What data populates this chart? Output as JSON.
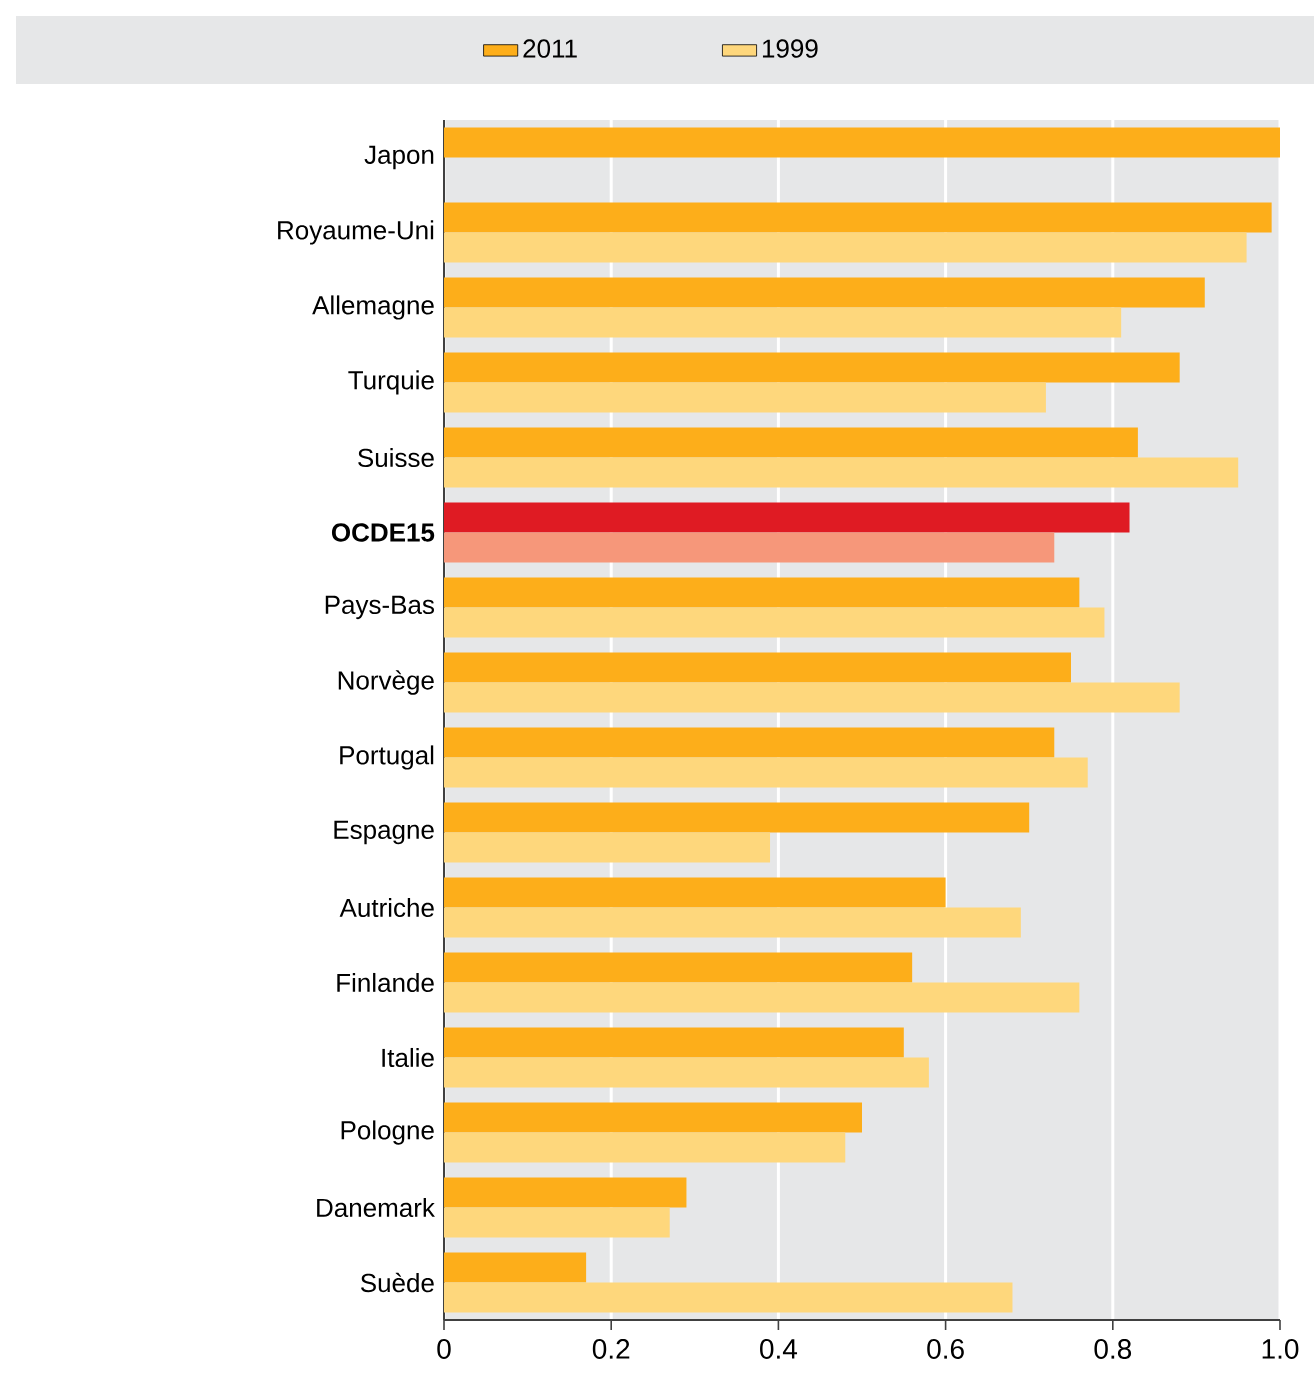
{
  "chart_data": {
    "type": "bar",
    "orientation": "horizontal",
    "categories": [
      "Japon",
      "Royaume-Uni",
      "Allemagne",
      "Turquie",
      "Suisse",
      "**OCDE15**",
      "Pays-Bas",
      "Norvège",
      "Portugal",
      "Espagne",
      "Autriche",
      "Finlande",
      "Italie",
      "Pologne",
      "Danemark",
      "Suède"
    ],
    "series": [
      {
        "name": "2011",
        "color": "#fdae1a",
        "colors": [
          "#fdae1a",
          "#fdae1a",
          "#fdae1a",
          "#fdae1a",
          "#fdae1a",
          "#df1b23",
          "#fdae1a",
          "#fdae1a",
          "#fdae1a",
          "#fdae1a",
          "#fdae1a",
          "#fdae1a",
          "#fdae1a",
          "#fdae1a",
          "#fdae1a",
          "#fdae1a"
        ],
        "values": [
          1.0,
          0.99,
          0.91,
          0.88,
          0.83,
          0.82,
          0.76,
          0.75,
          0.73,
          0.7,
          0.6,
          0.56,
          0.55,
          0.5,
          0.29,
          0.17
        ]
      },
      {
        "name": "1999",
        "color": "#fed77c",
        "colors": [
          "#fed77c",
          "#fed77c",
          "#fed77c",
          "#fed77c",
          "#fed77c",
          "#f6977a",
          "#fed77c",
          "#fed77c",
          "#fed77c",
          "#fed77c",
          "#fed77c",
          "#fed77c",
          "#fed77c",
          "#fed77c",
          "#fed77c",
          "#fed77c"
        ],
        "values": [
          null,
          0.96,
          0.81,
          0.72,
          0.95,
          0.73,
          0.79,
          0.88,
          0.77,
          0.39,
          0.69,
          0.76,
          0.58,
          0.48,
          0.27,
          0.68
        ]
      }
    ],
    "xlim": [
      0,
      1.0
    ],
    "xticks": [
      0,
      0.2,
      0.4,
      0.6,
      0.8,
      {
        "value": 1.0,
        "label": "1.0"
      }
    ],
    "grid": "x",
    "legend": "top"
  }
}
